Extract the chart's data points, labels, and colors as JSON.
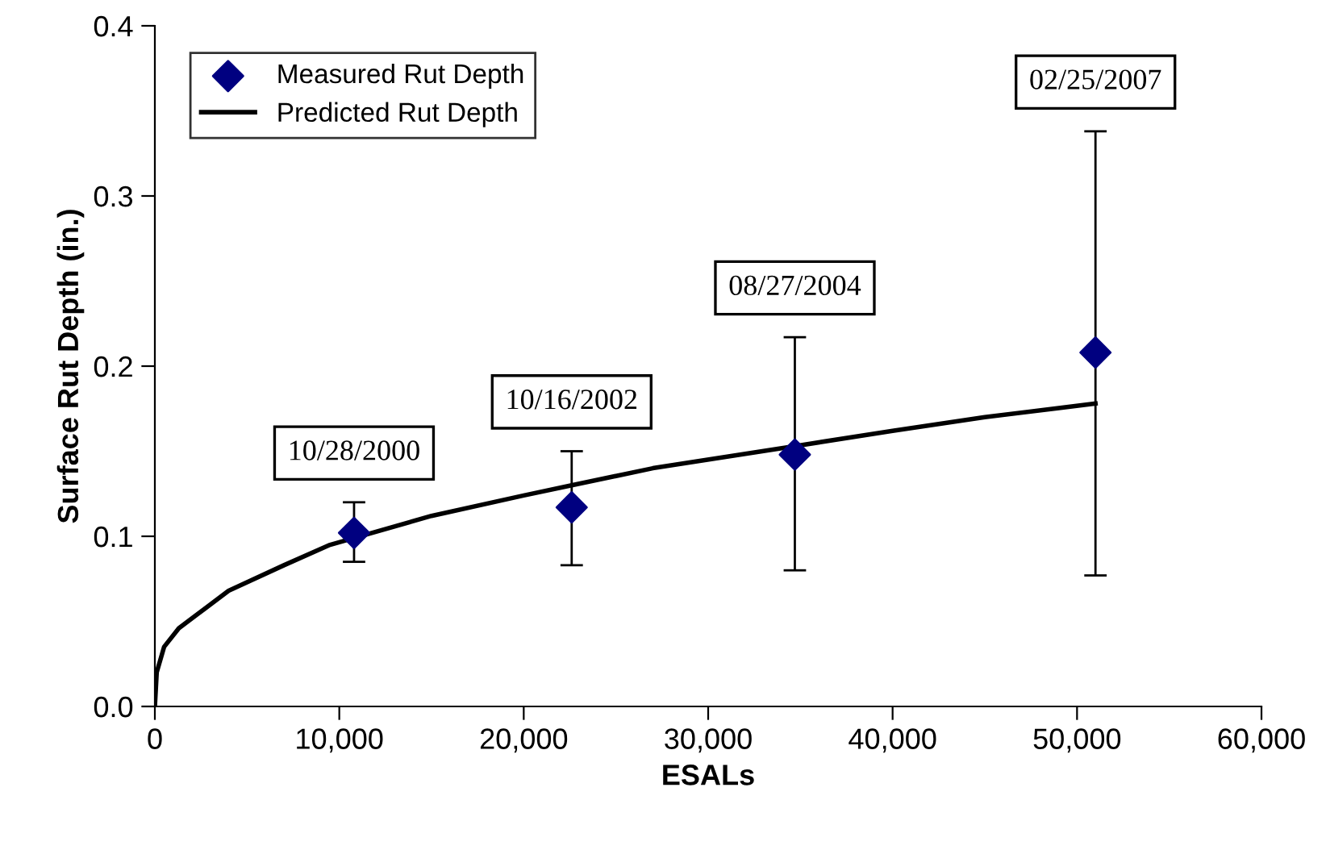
{
  "chart_data": {
    "type": "scatter",
    "xlabel": "ESALs",
    "ylabel": "Surface Rut Depth (in.)",
    "xlim": [
      0,
      60000
    ],
    "xticks": [
      {
        "value": 0,
        "label": "0"
      },
      {
        "value": 10000,
        "label": "10,000"
      },
      {
        "value": 20000,
        "label": "20,000"
      },
      {
        "value": 30000,
        "label": "30,000"
      },
      {
        "value": 40000,
        "label": "40,000"
      },
      {
        "value": 50000,
        "label": "50,000"
      },
      {
        "value": 60000,
        "label": "60,000"
      }
    ],
    "ylim": [
      0,
      0.4
    ],
    "yticks": [
      {
        "value": 0,
        "label": "0.0"
      },
      0.1,
      0.2,
      0.3,
      0.4
    ],
    "grid": false,
    "legend": "top left",
    "series": [
      {
        "name": "Measured Rut Depth",
        "marker": "diamond",
        "color": "#000080",
        "x": [
          10800,
          22600,
          34700,
          51000
        ],
        "values": [
          0.102,
          0.117,
          0.148,
          0.208
        ],
        "errors": [
          [
            0.085,
            0.12
          ],
          [
            0.083,
            0.15
          ],
          [
            0.08,
            0.217
          ],
          [
            0.077,
            0.338
          ]
        ]
      },
      {
        "name": "Predicted Rut Depth",
        "type": "line",
        "marker": "none",
        "line_style": "solid",
        "color": "#000000",
        "x": [
          0,
          100,
          500,
          1300,
          4000,
          7000,
          9500,
          15000,
          20000,
          22600,
          27000,
          34700,
          40000,
          45000,
          51000
        ],
        "values": [
          0,
          0.02,
          0.035,
          0.046,
          0.068,
          0.083,
          0.095,
          0.112,
          0.124,
          0.13,
          0.14,
          0.153,
          0.162,
          0.17,
          0.178
        ]
      }
    ],
    "annotations": [
      "10/28/2000",
      "10/16/2002",
      "08/27/2004",
      "02/25/2007"
    ]
  }
}
